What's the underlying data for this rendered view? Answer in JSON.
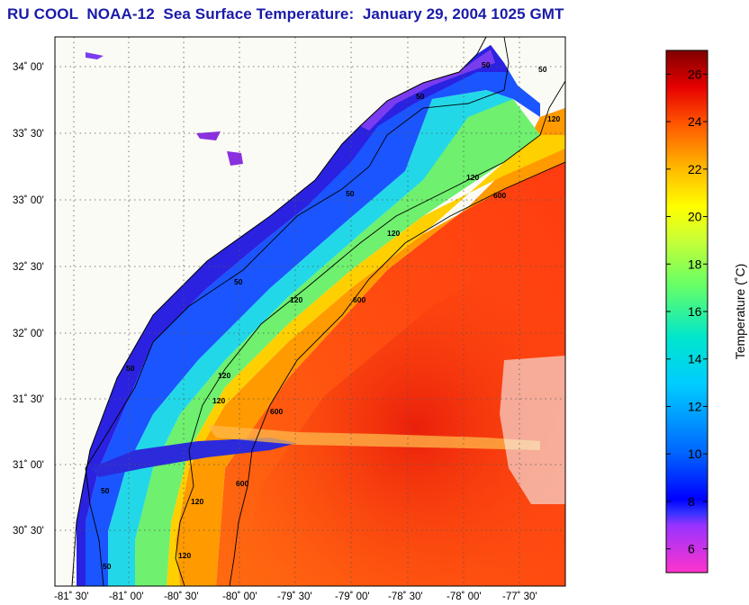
{
  "title": "RU COOL  NOAA-12  Sea Surface Temperature:  January 29, 2004 1025 GMT",
  "map": {
    "lat_labels": [
      "34˚ 00'",
      "33˚ 30'",
      "33˚ 00'",
      "32˚ 30'",
      "32˚ 00'",
      "31˚ 30'",
      "31˚ 00'",
      "30˚ 30'"
    ],
    "lon_labels": [
      "-81˚ 30'",
      "-81˚ 00'",
      "-80˚ 30'",
      "-80˚ 00'",
      "-79˚ 30'",
      "-79˚ 00'",
      "-78˚ 30'",
      "-78˚ 00'",
      "-77˚ 30'"
    ],
    "contours": [
      {
        "depth": "50",
        "labels": [
          "50",
          "50",
          "50",
          "50",
          "50",
          "50",
          "50",
          "50"
        ]
      },
      {
        "depth": "120",
        "labels": [
          "120",
          "120",
          "120",
          "120",
          "120",
          "120",
          "120",
          "120"
        ]
      },
      {
        "depth": "600",
        "labels": [
          "600",
          "600",
          "600",
          "600"
        ]
      }
    ]
  },
  "colorbar": {
    "label": "Temperature (˚C)",
    "ticks": [
      "26",
      "24",
      "22",
      "20",
      "18",
      "16",
      "14",
      "12",
      "10",
      "8",
      "6"
    ],
    "range": [
      5,
      27
    ]
  }
}
